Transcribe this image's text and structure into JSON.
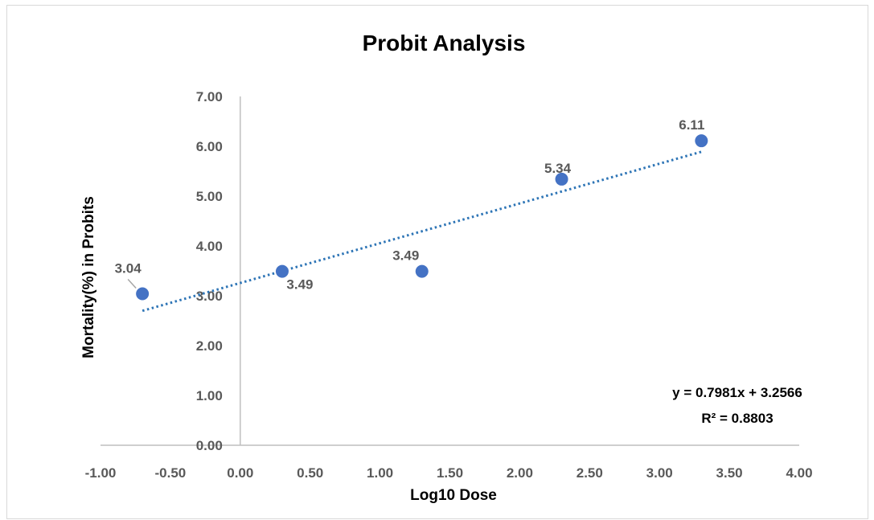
{
  "chart_data": {
    "type": "scatter",
    "title": "Probit Analysis",
    "xlabel": "Log10 Dose",
    "ylabel": "Mortality(%) in Probits",
    "xlim": [
      -1.0,
      4.0
    ],
    "ylim": [
      0.0,
      7.0
    ],
    "x_ticks": [
      "-1.00",
      "-0.50",
      "0.00",
      "0.50",
      "1.00",
      "1.50",
      "2.00",
      "2.50",
      "3.00",
      "3.50",
      "4.00"
    ],
    "y_ticks": [
      "0.00",
      "1.00",
      "2.00",
      "3.00",
      "4.00",
      "5.00",
      "6.00",
      "7.00"
    ],
    "grid": false,
    "series": [
      {
        "x": [
          -0.7,
          0.3,
          1.3,
          2.3,
          3.3
        ],
        "y": [
          3.04,
          3.49,
          3.49,
          5.34,
          6.11
        ],
        "labels": [
          "3.04",
          "3.49",
          "3.49",
          "5.34",
          "6.11"
        ],
        "color": "#4472c4"
      }
    ],
    "trendline": {
      "type": "linear",
      "slope": 0.7981,
      "intercept": 3.2566,
      "color": "#2e75b6",
      "style": "dotted",
      "equation": "y = 0.7981x + 3.2566",
      "r_squared": "R² = 0.8803"
    }
  }
}
